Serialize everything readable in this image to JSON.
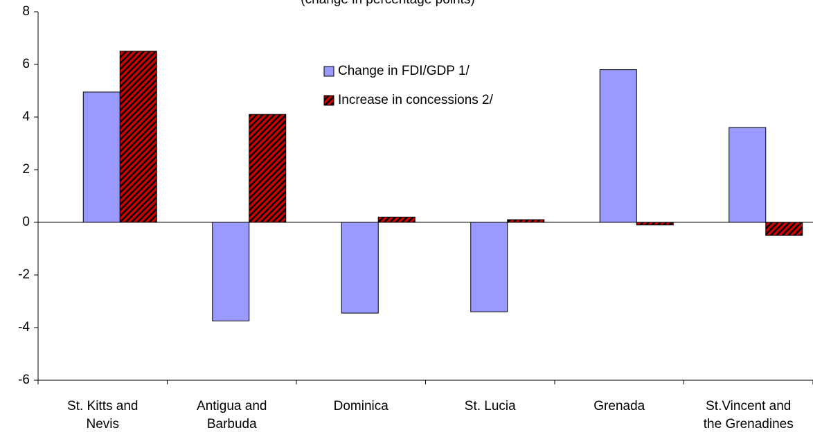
{
  "chart_data": {
    "type": "bar",
    "subtitle": "(change in percentage points)",
    "categories": [
      "St. Kitts and Nevis",
      "Antigua and Barbuda",
      "Dominica",
      "St. Lucia",
      "Grenada",
      "St.Vincent and the Grenadines"
    ],
    "series": [
      {
        "name": "Change in FDI/GDP 1/",
        "color": "#9999ff",
        "values": [
          4.95,
          -3.75,
          -3.45,
          -3.4,
          5.8,
          3.6
        ]
      },
      {
        "name": "Increase in concessions 2/",
        "color": "#cc0000",
        "values": [
          6.5,
          4.1,
          0.2,
          0.1,
          -0.1,
          -0.5
        ]
      }
    ],
    "ylim": [
      -6,
      8
    ],
    "yticks": [
      -6,
      -4,
      -2,
      0,
      2,
      4,
      6,
      8
    ],
    "grid": false
  }
}
